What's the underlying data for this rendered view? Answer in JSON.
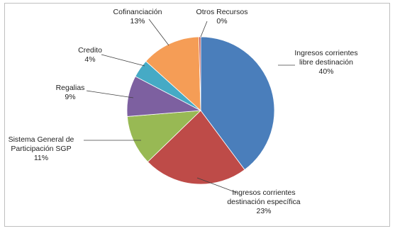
{
  "chart_data": {
    "type": "pie",
    "title": "",
    "slices": [
      {
        "label_lines": [
          "Ingresos corrientes",
          "libre destinación"
        ],
        "percent_label": "40%",
        "value": 40,
        "color": "#4A7EBB"
      },
      {
        "label_lines": [
          "Ingresos corrientes",
          "destinación específica"
        ],
        "percent_label": "23%",
        "value": 23,
        "color": "#BE4B48"
      },
      {
        "label_lines": [
          "Sistema General de",
          "Participación SGP"
        ],
        "percent_label": "11%",
        "value": 11,
        "color": "#98B954"
      },
      {
        "label_lines": [
          "Regalias"
        ],
        "percent_label": "9%",
        "value": 9,
        "color": "#7D60A0"
      },
      {
        "label_lines": [
          "Credito"
        ],
        "percent_label": "4%",
        "value": 4,
        "color": "#46AAC5"
      },
      {
        "label_lines": [
          "Cofinanciación"
        ],
        "percent_label": "13%",
        "value": 13,
        "color": "#F59D56"
      },
      {
        "label_lines": [
          "Otros Recursos"
        ],
        "percent_label": "0%",
        "value": 0.4,
        "color": "#C0504D"
      }
    ],
    "legend": "none (leader-line labels)"
  }
}
